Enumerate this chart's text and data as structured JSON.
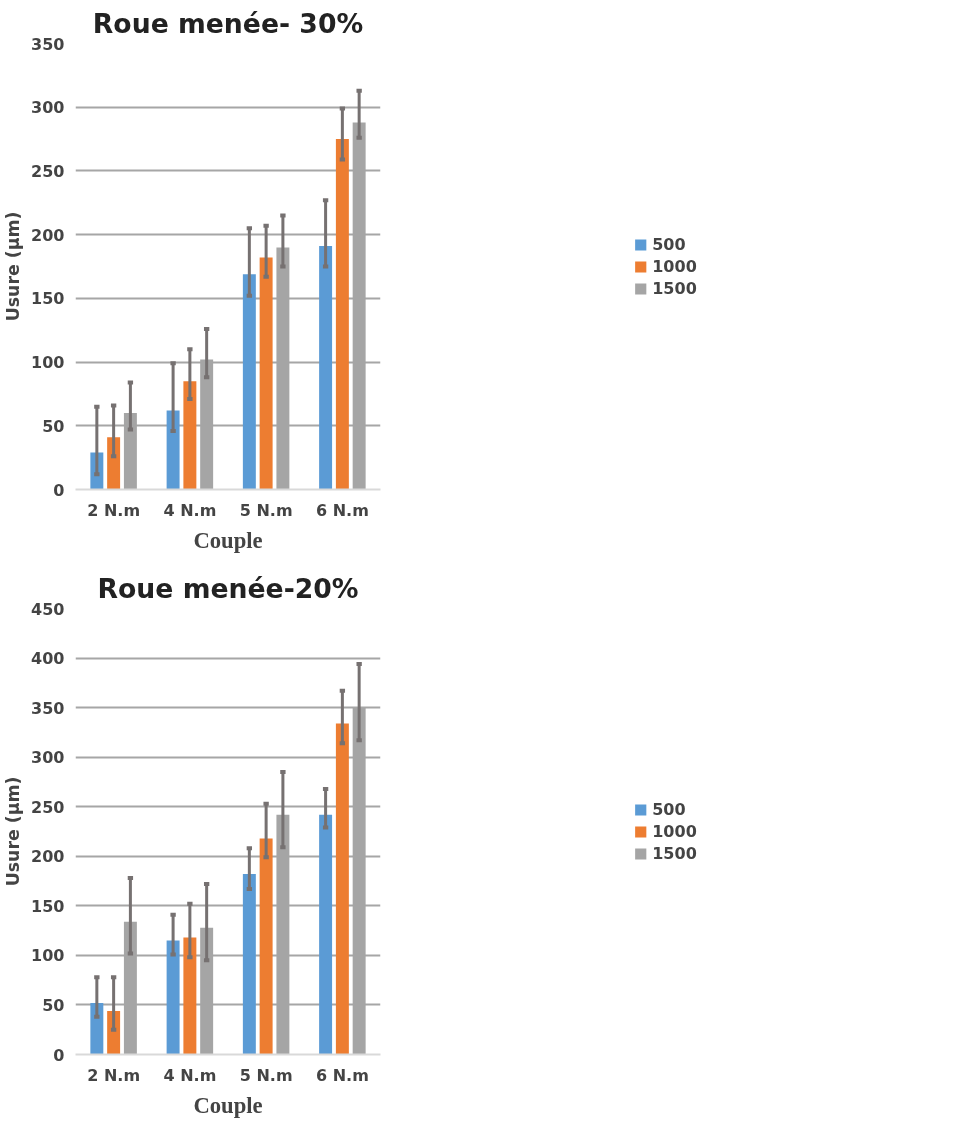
{
  "chart_data": [
    {
      "type": "bar",
      "title": "Roue menée- 30%",
      "xlabel": "Couple",
      "ylabel": "Usure (µm)",
      "categories": [
        "2 N.m",
        "4 N.m",
        "5 N.m",
        "6 N.m"
      ],
      "ylim": [
        0,
        350
      ],
      "yticks": [
        0,
        50,
        100,
        150,
        200,
        250,
        300,
        350
      ],
      "grid": "y",
      "legend": "right",
      "series": [
        {
          "name": "500",
          "color": "#5b9bd5",
          "values": [
            29,
            62,
            169,
            191
          ],
          "errors": [
            [
              12,
              65
            ],
            [
              46,
              99
            ],
            [
              152,
              205
            ],
            [
              175,
              227
            ]
          ]
        },
        {
          "name": "1000",
          "color": "#ed7d31",
          "values": [
            41,
            85,
            182,
            275
          ],
          "errors": [
            [
              26,
              66
            ],
            [
              71,
              110
            ],
            [
              167,
              207
            ],
            [
              259,
              299
            ]
          ]
        },
        {
          "name": "1500",
          "color": "#a5a5a5",
          "values": [
            60,
            102,
            190,
            288
          ],
          "errors": [
            [
              47,
              84
            ],
            [
              88,
              126
            ],
            [
              175,
              215
            ],
            [
              276,
              313
            ]
          ]
        }
      ]
    },
    {
      "type": "bar",
      "title": "Roue menée-20%",
      "xlabel": "Couple",
      "ylabel": "Usure (µm)",
      "categories": [
        "2 N.m",
        "4 N.m",
        "5 N.m",
        "6 N.m"
      ],
      "ylim": [
        0,
        450
      ],
      "yticks": [
        0,
        50,
        100,
        150,
        200,
        250,
        300,
        350,
        400,
        450
      ],
      "grid": "y",
      "legend": "right",
      "series": [
        {
          "name": "500",
          "color": "#5b9bd5",
          "values": [
            52,
            115,
            182,
            242
          ],
          "errors": [
            [
              38,
              78
            ],
            [
              101,
              141
            ],
            [
              167,
              208
            ],
            [
              229,
              268
            ]
          ]
        },
        {
          "name": "1000",
          "color": "#ed7d31",
          "values": [
            44,
            118,
            218,
            334
          ],
          "errors": [
            [
              25,
              78
            ],
            [
              98,
              152
            ],
            [
              199,
              253
            ],
            [
              314,
              367
            ]
          ]
        },
        {
          "name": "1500",
          "color": "#a5a5a5",
          "values": [
            134,
            128,
            242,
            350
          ],
          "errors": [
            [
              102,
              178
            ],
            [
              95,
              172
            ],
            [
              209,
              285
            ],
            [
              317,
              394
            ]
          ]
        }
      ]
    }
  ]
}
